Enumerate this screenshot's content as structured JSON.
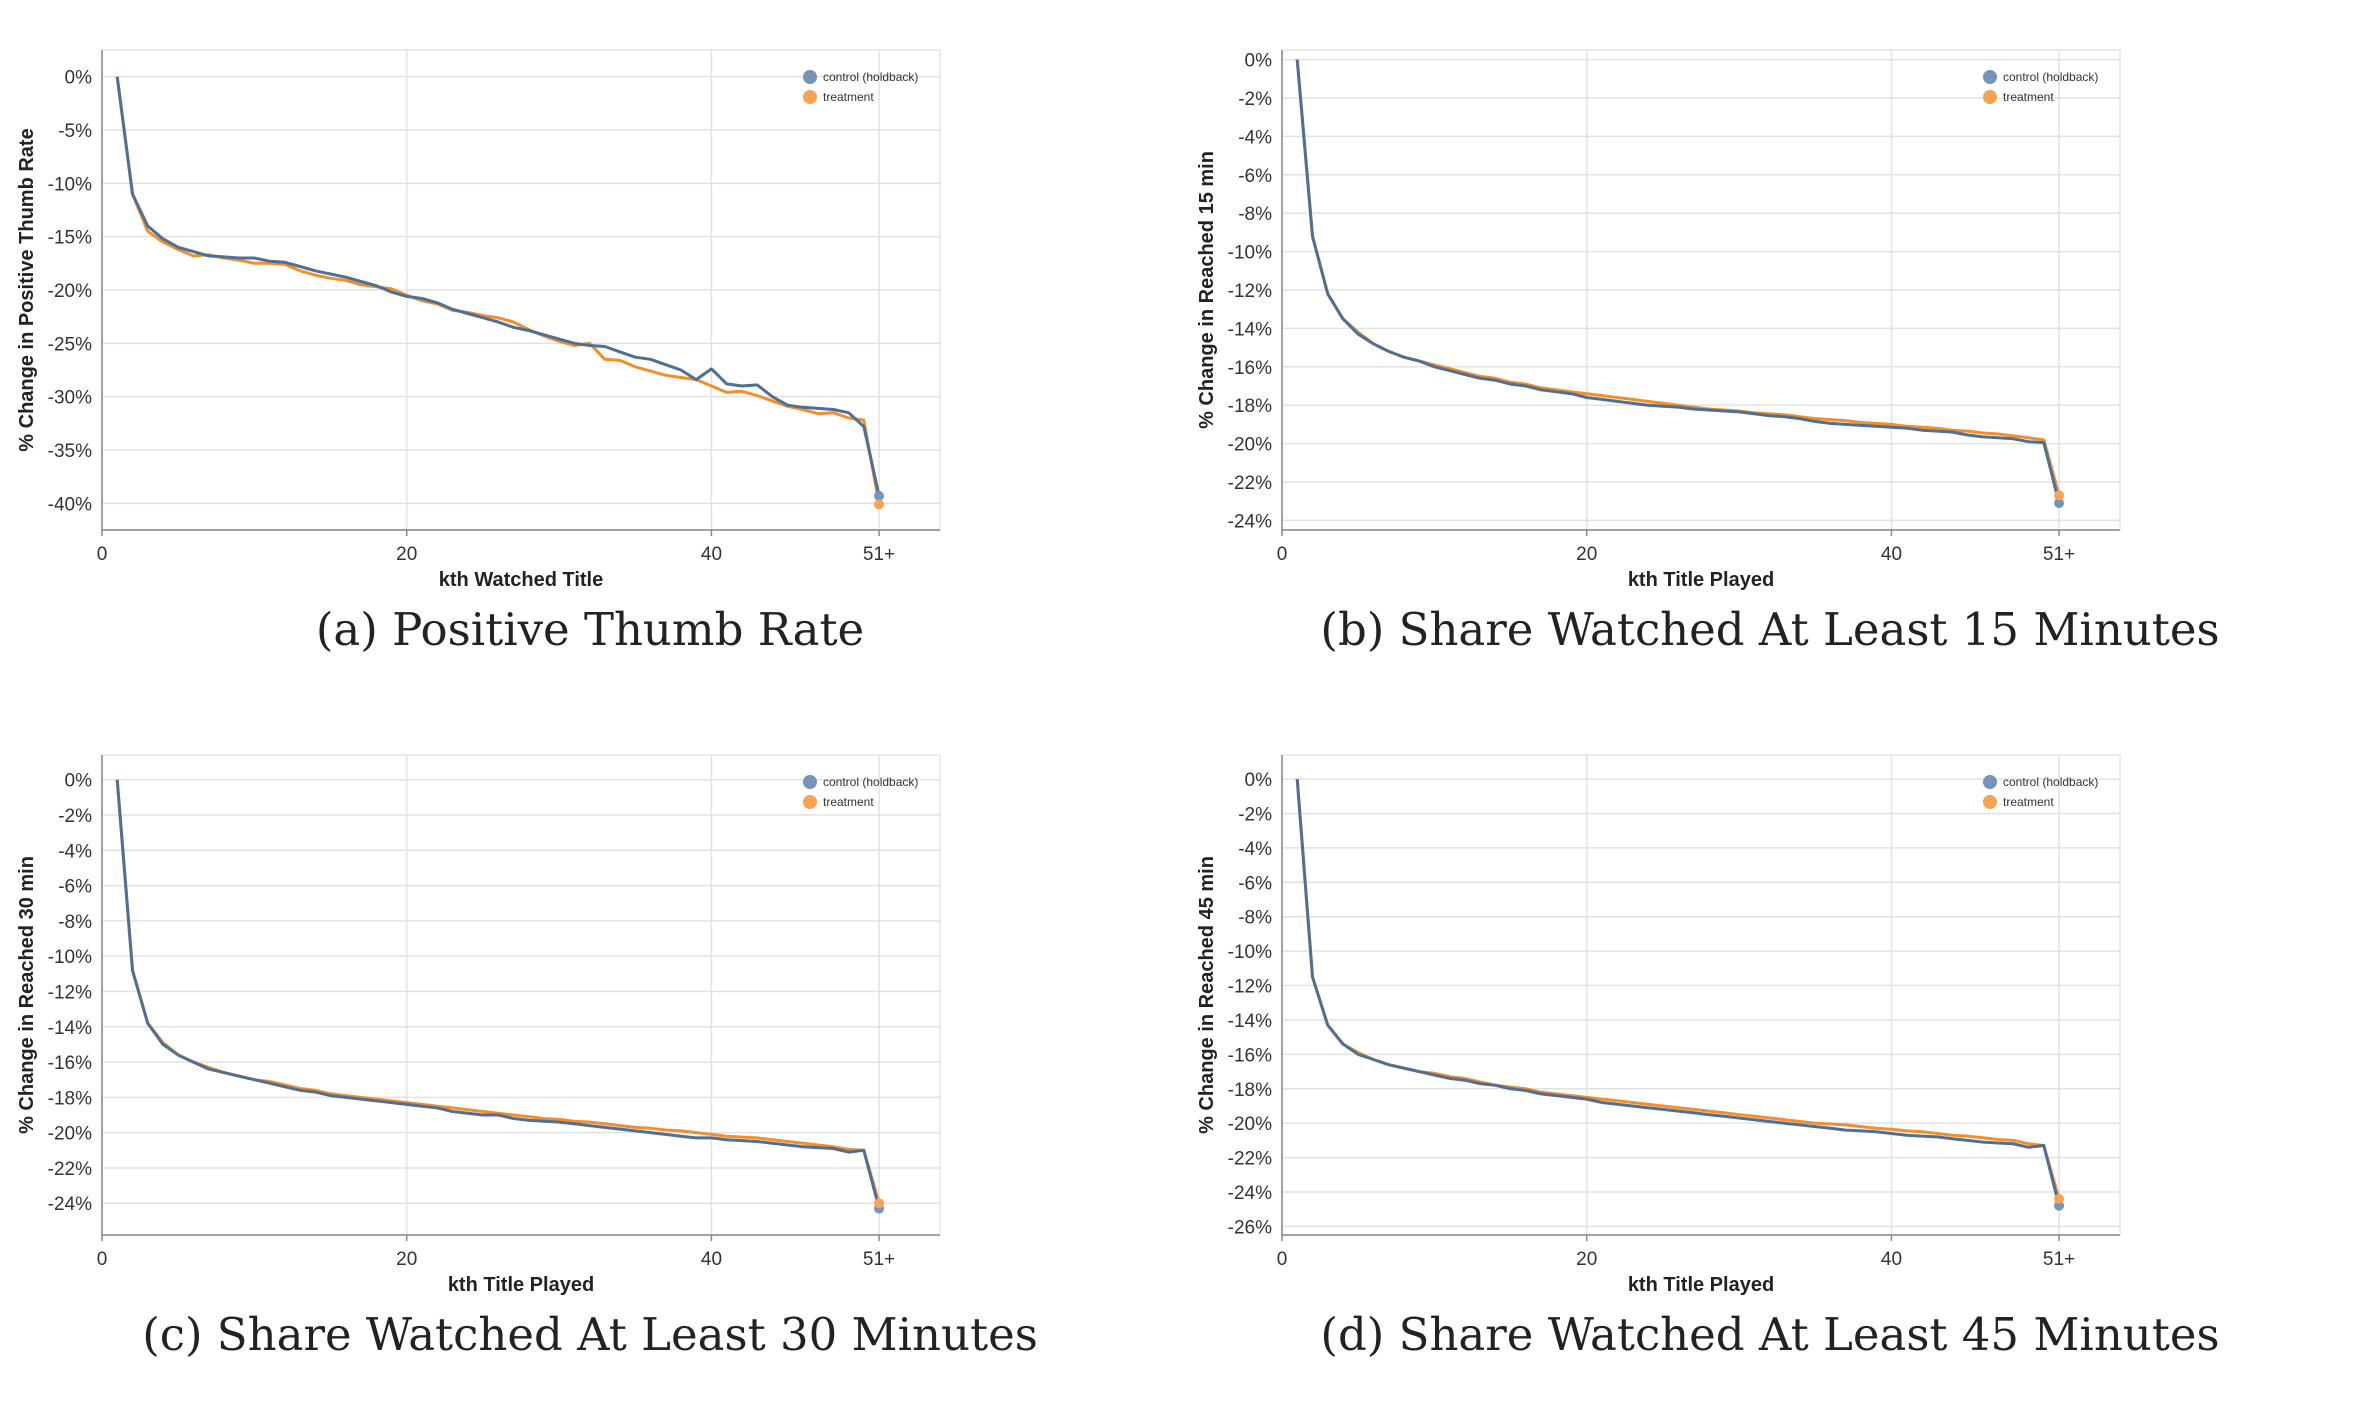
{
  "colors": {
    "control": "#4f6f94",
    "treatment": "#f28e2b",
    "control_dot": "#7594b8",
    "treatment_dot": "#f7a351",
    "grid": "#e2e2e2"
  },
  "legend": {
    "control": "control (holdback)",
    "treatment": "treatment"
  },
  "chart_data": [
    {
      "type": "line",
      "caption": "(a) Positive Thumb Rate",
      "xlabel": "kth Watched Title",
      "ylabel": "% Change in Positive Thumb Rate",
      "xticks": [
        "0",
        "20",
        "40",
        "51+"
      ],
      "xtick_values": [
        0,
        20,
        40,
        51
      ],
      "yticks": [
        0,
        -5,
        -10,
        -15,
        -20,
        -25,
        -30,
        -35,
        -40
      ],
      "xlim": [
        0,
        55
      ],
      "ylim": [
        -42.5,
        2.5
      ],
      "legend_position": "top-right",
      "x": [
        1,
        2,
        3,
        4,
        5,
        6,
        7,
        8,
        9,
        10,
        11,
        12,
        13,
        14,
        15,
        16,
        17,
        18,
        19,
        20,
        21,
        22,
        23,
        24,
        25,
        26,
        27,
        28,
        29,
        30,
        31,
        32,
        33,
        34,
        35,
        36,
        37,
        38,
        39,
        40,
        41,
        42,
        43,
        44,
        45,
        46,
        47,
        48,
        49,
        50,
        51
      ],
      "series": [
        {
          "name": "control (holdback)",
          "values": [
            0,
            -11,
            -14,
            -15.2,
            -16,
            -16.4,
            -16.8,
            -16.9,
            -17,
            -17,
            -17.3,
            -17.4,
            -17.8,
            -18.2,
            -18.5,
            -18.8,
            -19.2,
            -19.6,
            -20.2,
            -20.6,
            -20.8,
            -21.2,
            -21.8,
            -22.2,
            -22.6,
            -23,
            -23.5,
            -23.8,
            -24.2,
            -24.6,
            -25,
            -25.2,
            -25.3,
            -25.8,
            -26.3,
            -26.5,
            -27,
            -27.5,
            -28.4,
            -27.4,
            -28.8,
            -29,
            -28.9,
            -30,
            -30.8,
            -31,
            -31.1,
            -31.2,
            -31.5,
            -32.8,
            -39.3
          ]
        },
        {
          "name": "treatment",
          "values": [
            0,
            -11,
            -14.5,
            -15.5,
            -16.2,
            -16.8,
            -16.7,
            -17,
            -17.2,
            -17.5,
            -17.5,
            -17.6,
            -18.2,
            -18.6,
            -18.9,
            -19.1,
            -19.5,
            -19.7,
            -19.9,
            -20.5,
            -21,
            -21.3,
            -21.9,
            -22.1,
            -22.4,
            -22.6,
            -23,
            -23.7,
            -24.3,
            -24.8,
            -25.2,
            -25,
            -26.5,
            -26.6,
            -27.2,
            -27.6,
            -28,
            -28.2,
            -28.4,
            -29,
            -29.6,
            -29.5,
            -29.9,
            -30.4,
            -30.9,
            -31.2,
            -31.6,
            -31.5,
            -32,
            -32.2,
            -40.1
          ]
        }
      ]
    },
    {
      "type": "line",
      "caption": "(b) Share Watched At Least 15 Minutes",
      "xlabel": "kth Title Played",
      "ylabel": "% Change in Reached 15 min",
      "xticks": [
        "0",
        "20",
        "40",
        "51+"
      ],
      "xtick_values": [
        0,
        20,
        40,
        51
      ],
      "yticks": [
        0,
        -2,
        -4,
        -6,
        -8,
        -10,
        -12,
        -14,
        -16,
        -18,
        -20,
        -22,
        -24
      ],
      "xlim": [
        0,
        55
      ],
      "ylim": [
        -24.5,
        0.5
      ],
      "legend_position": "top-right",
      "x": [
        1,
        2,
        3,
        4,
        5,
        6,
        7,
        8,
        9,
        10,
        11,
        12,
        13,
        14,
        15,
        16,
        17,
        18,
        19,
        20,
        21,
        22,
        23,
        24,
        25,
        26,
        27,
        28,
        29,
        30,
        31,
        32,
        33,
        34,
        35,
        36,
        37,
        38,
        39,
        40,
        41,
        42,
        43,
        44,
        45,
        46,
        47,
        48,
        49,
        50,
        51
      ],
      "series": [
        {
          "name": "control (holdback)",
          "values": [
            0,
            -9.2,
            -12.2,
            -13.5,
            -14.3,
            -14.8,
            -15.2,
            -15.5,
            -15.7,
            -16,
            -16.2,
            -16.4,
            -16.6,
            -16.7,
            -16.9,
            -17,
            -17.2,
            -17.3,
            -17.4,
            -17.6,
            -17.7,
            -17.8,
            -17.9,
            -18,
            -18.05,
            -18.1,
            -18.2,
            -18.25,
            -18.3,
            -18.35,
            -18.45,
            -18.55,
            -18.6,
            -18.7,
            -18.85,
            -18.95,
            -19,
            -19.05,
            -19.1,
            -19.15,
            -19.2,
            -19.3,
            -19.35,
            -19.4,
            -19.55,
            -19.65,
            -19.7,
            -19.75,
            -19.9,
            -19.95,
            -23.1
          ]
        },
        {
          "name": "treatment",
          "values": [
            0,
            -9.2,
            -12.2,
            -13.5,
            -14.2,
            -14.8,
            -15.2,
            -15.5,
            -15.7,
            -15.9,
            -16.1,
            -16.3,
            -16.5,
            -16.6,
            -16.8,
            -16.9,
            -17.1,
            -17.2,
            -17.3,
            -17.4,
            -17.5,
            -17.6,
            -17.7,
            -17.8,
            -17.9,
            -18,
            -18.1,
            -18.2,
            -18.25,
            -18.3,
            -18.4,
            -18.45,
            -18.5,
            -18.6,
            -18.7,
            -18.75,
            -18.8,
            -18.9,
            -18.95,
            -19,
            -19.1,
            -19.15,
            -19.2,
            -19.3,
            -19.35,
            -19.45,
            -19.5,
            -19.6,
            -19.7,
            -19.8,
            -22.7
          ]
        }
      ]
    },
    {
      "type": "line",
      "caption": "(c) Share Watched At Least 30 Minutes",
      "xlabel": "kth Title Played",
      "ylabel": "% Change in Reached 30 min",
      "xticks": [
        "0",
        "20",
        "40",
        "51+"
      ],
      "xtick_values": [
        0,
        20,
        40,
        51
      ],
      "yticks": [
        0,
        -2,
        -4,
        -6,
        -8,
        -10,
        -12,
        -14,
        -16,
        -18,
        -20,
        -22,
        -24
      ],
      "xlim": [
        0,
        55
      ],
      "ylim": [
        -25.8,
        1.4
      ],
      "legend_position": "top-right",
      "x": [
        1,
        2,
        3,
        4,
        5,
        6,
        7,
        8,
        9,
        10,
        11,
        12,
        13,
        14,
        15,
        16,
        17,
        18,
        19,
        20,
        21,
        22,
        23,
        24,
        25,
        26,
        27,
        28,
        29,
        30,
        31,
        32,
        33,
        34,
        35,
        36,
        37,
        38,
        39,
        40,
        41,
        42,
        43,
        44,
        45,
        46,
        47,
        48,
        49,
        50,
        51
      ],
      "series": [
        {
          "name": "control (holdback)",
          "values": [
            0,
            -10.8,
            -13.8,
            -15,
            -15.6,
            -16,
            -16.4,
            -16.6,
            -16.8,
            -17,
            -17.2,
            -17.4,
            -17.6,
            -17.7,
            -17.9,
            -18,
            -18.1,
            -18.2,
            -18.3,
            -18.4,
            -18.5,
            -18.6,
            -18.8,
            -18.9,
            -19,
            -19,
            -19.2,
            -19.3,
            -19.35,
            -19.4,
            -19.5,
            -19.6,
            -19.7,
            -19.8,
            -19.9,
            -20,
            -20.1,
            -20.2,
            -20.3,
            -20.3,
            -20.4,
            -20.45,
            -20.5,
            -20.6,
            -20.7,
            -20.8,
            -20.85,
            -20.9,
            -21.1,
            -21,
            -24.3
          ]
        },
        {
          "name": "treatment",
          "values": [
            0,
            -10.8,
            -13.8,
            -14.9,
            -15.6,
            -16,
            -16.3,
            -16.6,
            -16.8,
            -17,
            -17.1,
            -17.3,
            -17.5,
            -17.6,
            -17.8,
            -17.9,
            -18,
            -18.1,
            -18.2,
            -18.3,
            -18.4,
            -18.5,
            -18.6,
            -18.7,
            -18.8,
            -18.9,
            -19,
            -19.1,
            -19.2,
            -19.25,
            -19.35,
            -19.4,
            -19.5,
            -19.6,
            -19.7,
            -19.75,
            -19.85,
            -19.9,
            -20,
            -20.1,
            -20.2,
            -20.25,
            -20.3,
            -20.4,
            -20.5,
            -20.6,
            -20.7,
            -20.8,
            -20.95,
            -21,
            -24
          ]
        }
      ]
    },
    {
      "type": "line",
      "caption": "(d) Share Watched At Least 45 Minutes",
      "xlabel": "kth Title Played",
      "ylabel": "% Change in Reached 45 min",
      "xticks": [
        "0",
        "20",
        "40",
        "51+"
      ],
      "xtick_values": [
        0,
        20,
        40,
        51
      ],
      "yticks": [
        0,
        -2,
        -4,
        -6,
        -8,
        -10,
        -12,
        -14,
        -16,
        -18,
        -20,
        -22,
        -24,
        -26
      ],
      "xlim": [
        0,
        55
      ],
      "ylim": [
        -26.5,
        1.4
      ],
      "legend_position": "top-right",
      "x": [
        1,
        2,
        3,
        4,
        5,
        6,
        7,
        8,
        9,
        10,
        11,
        12,
        13,
        14,
        15,
        16,
        17,
        18,
        19,
        20,
        21,
        22,
        23,
        24,
        25,
        26,
        27,
        28,
        29,
        30,
        31,
        32,
        33,
        34,
        35,
        36,
        37,
        38,
        39,
        40,
        41,
        42,
        43,
        44,
        45,
        46,
        47,
        48,
        49,
        50,
        51
      ],
      "series": [
        {
          "name": "control (holdback)",
          "values": [
            0,
            -11.5,
            -14.3,
            -15.4,
            -16,
            -16.3,
            -16.6,
            -16.8,
            -17,
            -17.2,
            -17.4,
            -17.5,
            -17.7,
            -17.8,
            -18,
            -18.1,
            -18.3,
            -18.4,
            -18.5,
            -18.6,
            -18.8,
            -18.9,
            -19,
            -19.1,
            -19.2,
            -19.3,
            -19.4,
            -19.5,
            -19.6,
            -19.7,
            -19.8,
            -19.9,
            -20,
            -20.1,
            -20.2,
            -20.3,
            -20.4,
            -20.45,
            -20.5,
            -20.6,
            -20.7,
            -20.75,
            -20.8,
            -20.9,
            -21,
            -21.1,
            -21.15,
            -21.2,
            -21.4,
            -21.3,
            -24.8
          ]
        },
        {
          "name": "treatment",
          "values": [
            0,
            -11.5,
            -14.3,
            -15.4,
            -15.9,
            -16.3,
            -16.6,
            -16.8,
            -17,
            -17.1,
            -17.3,
            -17.4,
            -17.6,
            -17.8,
            -17.9,
            -18,
            -18.2,
            -18.3,
            -18.4,
            -18.5,
            -18.6,
            -18.7,
            -18.8,
            -18.9,
            -19,
            -19.1,
            -19.2,
            -19.3,
            -19.4,
            -19.5,
            -19.6,
            -19.7,
            -19.8,
            -19.9,
            -20,
            -20.05,
            -20.1,
            -20.2,
            -20.3,
            -20.35,
            -20.45,
            -20.5,
            -20.6,
            -20.7,
            -20.75,
            -20.85,
            -20.95,
            -21,
            -21.2,
            -21.3,
            -24.4
          ]
        }
      ]
    }
  ]
}
